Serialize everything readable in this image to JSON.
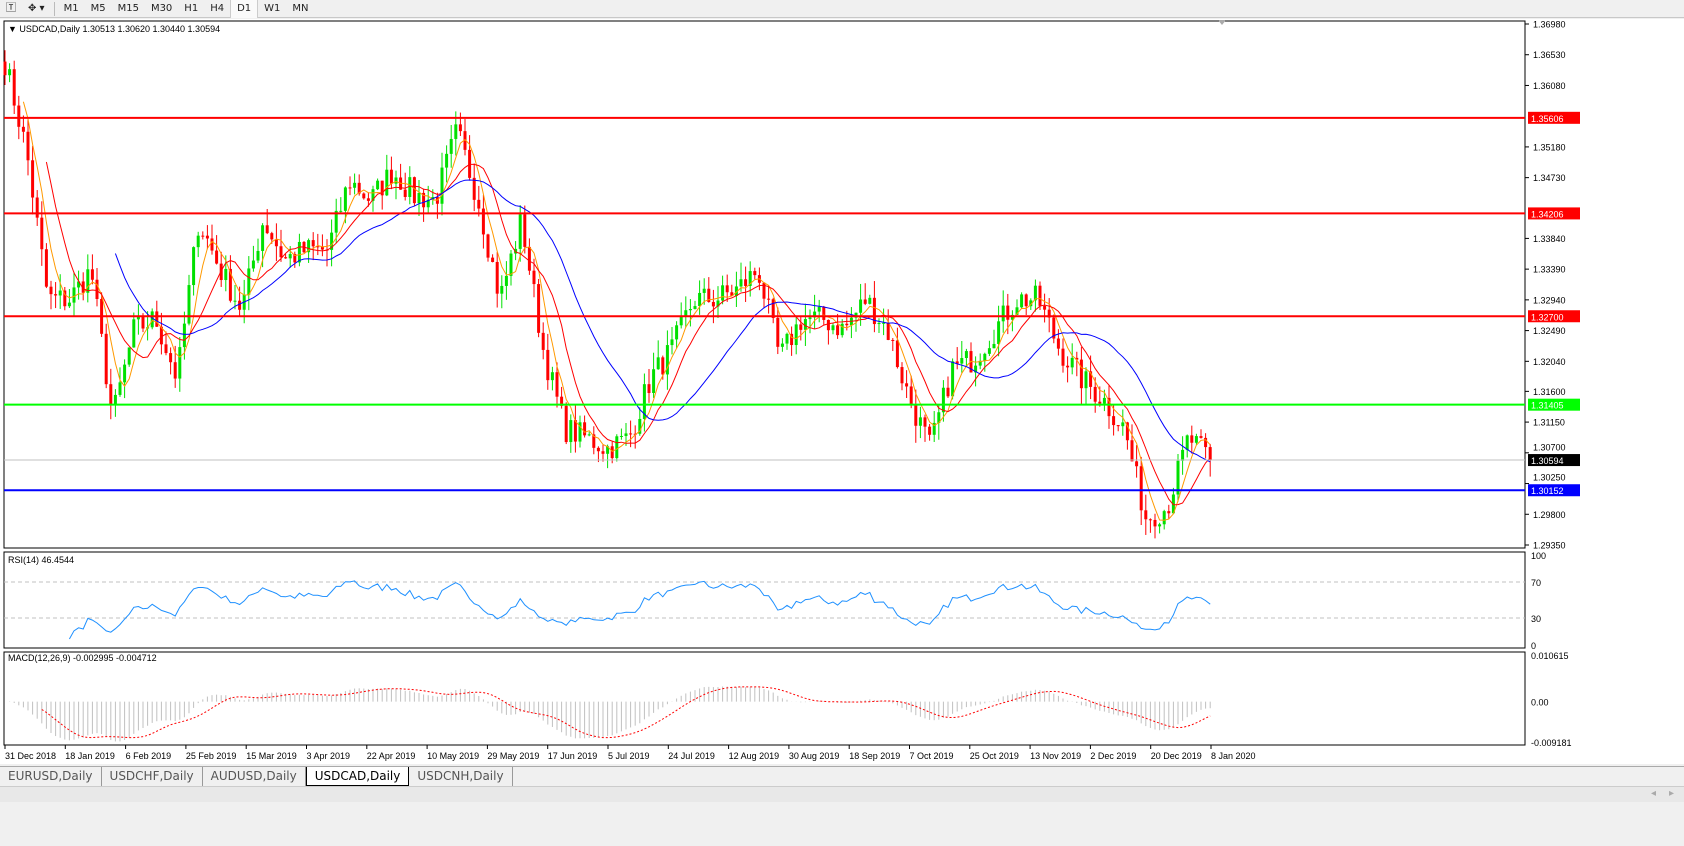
{
  "toolbar": {
    "timeframes": [
      "M1",
      "M5",
      "M15",
      "M30",
      "H1",
      "H4",
      "D1",
      "W1",
      "MN"
    ],
    "active": "D1"
  },
  "main_header": {
    "symbol": "USDCAD,Daily",
    "ohlc": "1.30513 1.30620 1.30440 1.30594"
  },
  "rsi_header": "RSI(14) 46.4544",
  "macd_header": "MACD(12,26,9) -0.002995 -0.004712",
  "tabs": [
    "EURUSD,Daily",
    "USDCHF,Daily",
    "AUDUSD,Daily",
    "USDCAD,Daily",
    "USDCNH,Daily"
  ],
  "active_tab": "USDCAD,Daily",
  "colors": {
    "bull": "#00e000",
    "bear": "#ff0000",
    "ma_fast": "#ff9900",
    "ma_mid": "#ff0000",
    "ma_slow": "#0000ff",
    "rsi": "#1e90ff",
    "macd_hist": "#c0c0c0",
    "macd_signal": "#ff0000"
  },
  "chart_data": {
    "type": "candlestick",
    "price_ticks": [
      "1.36980",
      "1.36530",
      "1.36080",
      "1.35180",
      "1.34730",
      "1.33840",
      "1.33390",
      "1.32940",
      "1.32490",
      "1.32040",
      "1.31600",
      "1.31150",
      "1.30700",
      "1.30250",
      "1.29800",
      "1.29350"
    ],
    "ylim": [
      1.2935,
      1.3698
    ],
    "date_labels": [
      "31 Dec 2018",
      "18 Jan 2019",
      "6 Feb 2019",
      "25 Feb 2019",
      "15 Mar 2019",
      "3 Apr 2019",
      "22 Apr 2019",
      "10 May 2019",
      "29 May 2019",
      "17 Jun 2019",
      "5 Jul 2019",
      "24 Jul 2019",
      "12 Aug 2019",
      "30 Aug 2019",
      "18 Sep 2019",
      "7 Oct 2019",
      "25 Oct 2019",
      "13 Nov 2019",
      "2 Dec 2019",
      "20 Dec 2019",
      "8 Jan 2020"
    ],
    "weekly_close_approx": [
      1.3643,
      1.3512,
      1.3295,
      1.3295,
      1.3338,
      1.3121,
      1.3251,
      1.3266,
      1.3179,
      1.3411,
      1.3338,
      1.328,
      1.3411,
      1.3353,
      1.3367,
      1.3367,
      1.3469,
      1.344,
      1.3483,
      1.3447,
      1.344,
      1.3541,
      1.344,
      1.3295,
      1.3411,
      1.3222,
      1.3106,
      1.3092,
      1.3077,
      1.3092,
      1.3179,
      1.3222,
      1.3295,
      1.3295,
      1.3309,
      1.3338,
      1.3208,
      1.3266,
      1.3266,
      1.3251,
      1.3295,
      1.3251,
      1.315,
      1.3077,
      1.3193,
      1.3208,
      1.3251,
      1.3295,
      1.3295,
      1.3222,
      1.3179,
      1.315,
      1.3106,
      1.2976,
      1.299,
      1.3092,
      1.30594
    ],
    "levels": [
      {
        "price": "1.35606",
        "color": "#ff0000"
      },
      {
        "price": "1.34206",
        "color": "#ff0000"
      },
      {
        "price": "1.32700",
        "color": "#ff0000"
      },
      {
        "price": "1.31405",
        "color": "#00ff00"
      },
      {
        "price": "1.30152",
        "color": "#0000ff"
      }
    ],
    "current_price": "1.30594",
    "rsi_ticks": [
      "100",
      "70",
      "30",
      "0"
    ],
    "macd_ticks": [
      "0.010615",
      "0.00",
      "-0.009181"
    ]
  }
}
